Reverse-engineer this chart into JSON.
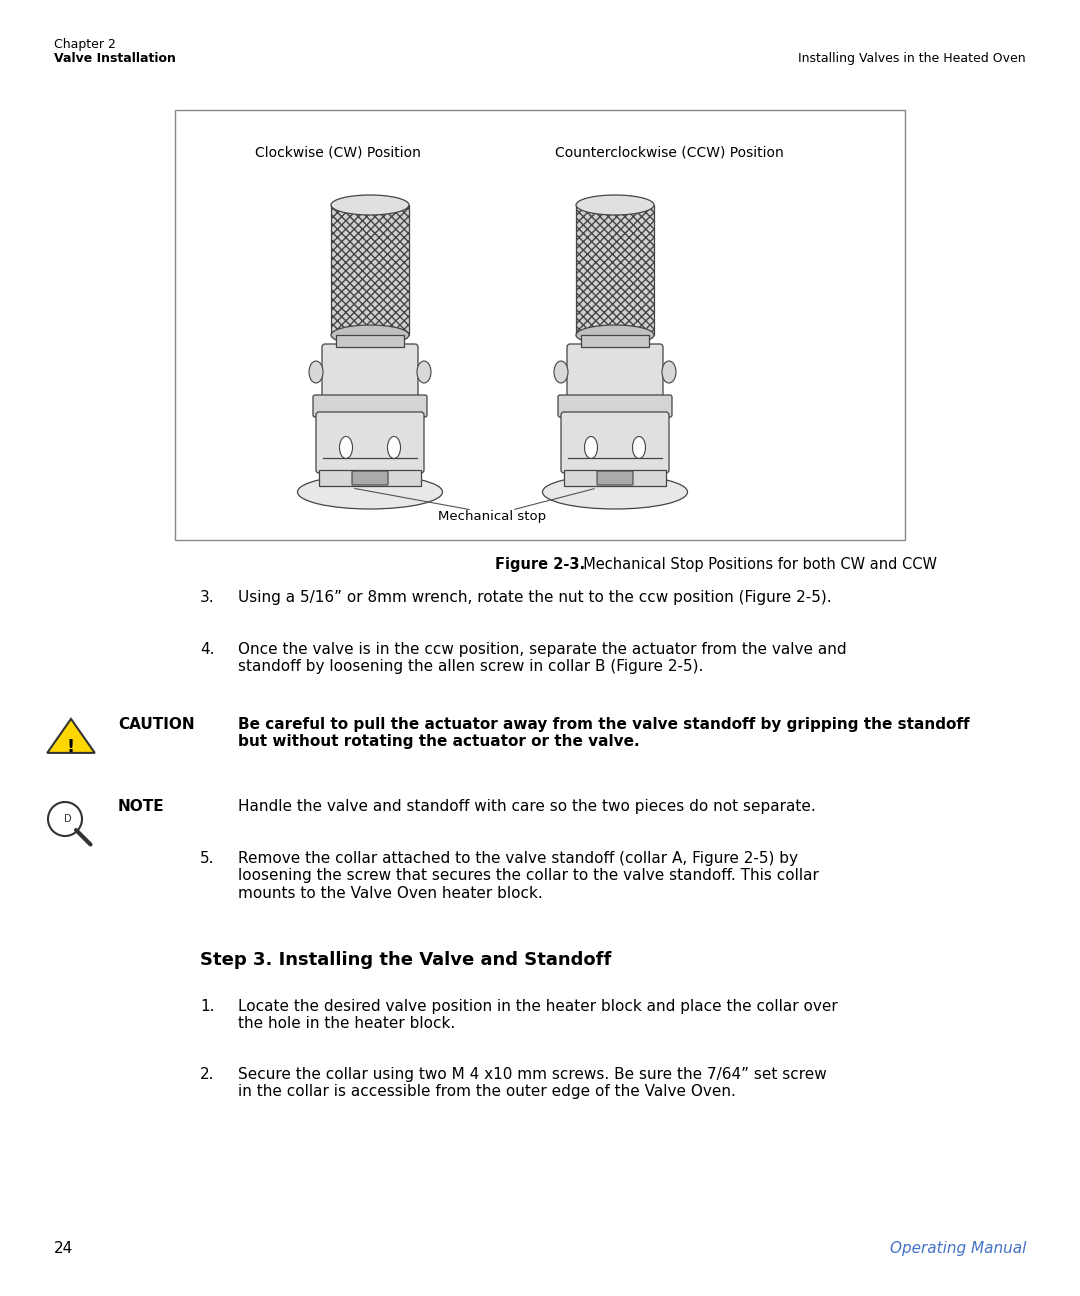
{
  "bg_color": "#ffffff",
  "text_color": "#000000",
  "header_left_line1": "Chapter 2",
  "header_left_line2": "Valve Installation",
  "header_right": "Installing Valves in the Heated Oven",
  "fig_caption_bold": "Figure 2-3.",
  "fig_caption_rest": "  Mechanical Stop Positions for both CW and CCW",
  "cw_label": "Clockwise (CW) Position",
  "ccw_label": "Counterclockwise (CCW) Position",
  "mech_stop_label": "Mechanical stop",
  "step3_title": "Step 3. Installing the Valve and Standoff",
  "item3": "Using a 5/16” or 8mm wrench, rotate the nut to the ccw position (Figure 2-5).",
  "item4": "Once the valve is in the ccw position, separate the actuator from the valve and\nstandoff by loosening the allen screw in collar B (Figure 2-5).",
  "caution_label": "CAUTION",
  "caution_text": "Be careful to pull the actuator away from the valve standoff by gripping the standoff\nbut without rotating the actuator or the valve.",
  "note_label": "NOTE",
  "note_text": "Handle the valve and standoff with care so the two pieces do not separate.",
  "item5": "Remove the collar attached to the valve standoff (collar A, Figure 2-5) by\nloosening the screw that secures the collar to the valve standoff. This collar\nmounts to the Valve Oven heater block.",
  "step3_item1": "Locate the desired valve position in the heater block and place the collar over\nthe hole in the heater block.",
  "step3_item2": "Secure the collar using two M 4 x10 mm screws. Be sure the 7/64” set screw\nin the collar is accessible from the outer edge of the Valve Oven.",
  "page_num": "24",
  "footer_right": "Operating Manual",
  "footer_color": "#4472C4"
}
